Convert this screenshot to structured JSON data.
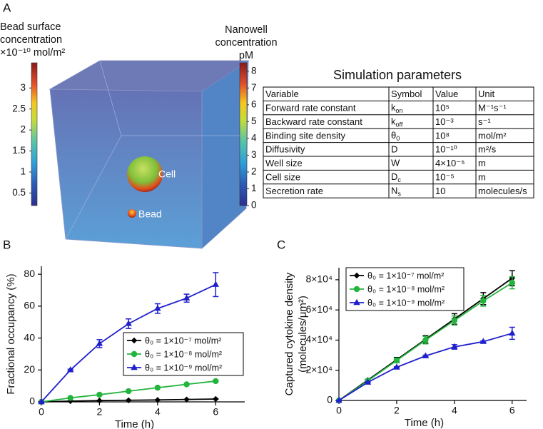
{
  "panel_labels": [
    "A",
    "B",
    "C"
  ],
  "colorbars": [
    {
      "title": [
        "Bead surface",
        "concentration",
        "×10⁻¹⁰ mol/m²"
      ],
      "lim": [
        0.2,
        3.6
      ],
      "ticks": [
        0.5,
        1,
        1.5,
        2,
        2.5,
        3
      ]
    },
    {
      "title": [
        "Nanowell",
        "concentration",
        "pM"
      ],
      "lim": [
        0,
        8.5
      ],
      "ticks": [
        0,
        1,
        2,
        3,
        4,
        5,
        6,
        7,
        8
      ]
    }
  ],
  "cube": {
    "cell_label": "Cell",
    "bead_label": "Bead"
  },
  "table": {
    "title": "Simulation parameters",
    "header": [
      "Variable",
      "Symbol",
      "Value",
      "Unit"
    ],
    "rows": [
      [
        "Forward rate constant",
        {
          "text": "k",
          "sub": "on"
        },
        "10⁵",
        "M⁻¹s⁻¹"
      ],
      [
        "Backward rate constant",
        {
          "text": "k",
          "sub": "off"
        },
        "10⁻³",
        "s⁻¹"
      ],
      [
        "Binding site density",
        {
          "text": "θ",
          "sub": "0"
        },
        "10⁸",
        "mol/m²"
      ],
      [
        "Diffusivity",
        {
          "text": "D"
        },
        "10⁻¹⁰",
        "m²/s"
      ],
      [
        "Well size",
        {
          "text": "W"
        },
        "4×10⁻⁵",
        "m"
      ],
      [
        "Cell size",
        {
          "text": "D",
          "sub": "c"
        },
        "10⁻⁵",
        "m"
      ],
      [
        "Secretion rate",
        {
          "text": "N",
          "sub": "s"
        },
        "10",
        "molecules/s"
      ]
    ]
  },
  "chart_data": [
    {
      "type": "line",
      "xlabel": "Time (h)",
      "ylabel": [
        "Fractional occupancy (%)"
      ],
      "x": [
        0,
        1,
        2,
        3,
        4,
        5,
        6
      ],
      "xlim": [
        0,
        7
      ],
      "xticks": [
        0,
        2,
        4,
        6
      ],
      "ylim": [
        0,
        85
      ],
      "yticks": [
        0,
        20,
        40,
        60,
        80
      ],
      "legend": "lower right",
      "series": [
        {
          "name": "θ₀ = 1×10⁻⁷ mol/m²",
          "color": "#000000",
          "marker": "diamond",
          "values": [
            0,
            0.5,
            0.8,
            1.0,
            1.2,
            1.5,
            1.8
          ],
          "errors": [
            0,
            0.1,
            0.1,
            0.1,
            0.1,
            0.1,
            0.2
          ]
        },
        {
          "name": "θ₀ = 1×10⁻⁸ mol/m²",
          "color": "#22b43c",
          "marker": "circle",
          "values": [
            0,
            2.5,
            4.5,
            6.7,
            8.9,
            11,
            13
          ],
          "errors": [
            0,
            0.2,
            0.3,
            0.3,
            0.3,
            0.3,
            0.4
          ]
        },
        {
          "name": "θ₀ = 1×10⁻⁹ mol/m²",
          "color": "#1f1fcc",
          "marker": "triangle",
          "values": [
            0,
            20,
            36.5,
            49,
            58.5,
            65,
            73.5
          ],
          "errors": [
            0,
            0.5,
            2.5,
            3,
            3,
            2.5,
            7.5
          ]
        }
      ]
    },
    {
      "type": "line",
      "xlabel": "Time (h)",
      "ylabel": [
        "Captured cytokine density",
        "(molecules/μm²)"
      ],
      "x": [
        0,
        1,
        2,
        3,
        4,
        5,
        6
      ],
      "xlim": [
        0,
        6.5
      ],
      "xticks": [
        0,
        2,
        4,
        6
      ],
      "ylim": [
        0,
        88000
      ],
      "yticks": [
        0,
        {
          "value": 20000,
          "label": "2×10⁴"
        },
        {
          "value": 40000,
          "label": "4×10⁴"
        },
        {
          "value": 60000,
          "label": "6×10⁴"
        },
        {
          "value": 80000,
          "label": "8×10⁴"
        }
      ],
      "legend": "upper left",
      "series": [
        {
          "name": "θ₀ = 1×10⁻⁷ mol/m²",
          "color": "#000000",
          "marker": "diamond",
          "values": [
            0,
            13500,
            27000,
            40500,
            54000,
            67500,
            81000
          ],
          "errors": [
            0,
            500,
            1500,
            2500,
            3500,
            4000,
            5000
          ]
        },
        {
          "name": "θ₀ = 1×10⁻⁸ mol/m²",
          "color": "#22b43c",
          "marker": "circle",
          "values": [
            0,
            13000,
            26500,
            40000,
            53000,
            66000,
            78000
          ],
          "errors": [
            0,
            500,
            1500,
            2500,
            3000,
            3500,
            4000
          ]
        },
        {
          "name": "θ₀ = 1×10⁻⁹ mol/m²",
          "color": "#1f1fcc",
          "marker": "triangle",
          "values": [
            0,
            12000,
            22000,
            29500,
            35500,
            39000,
            44500
          ],
          "errors": [
            0,
            300,
            300,
            500,
            1500,
            500,
            4000
          ]
        }
      ]
    }
  ]
}
